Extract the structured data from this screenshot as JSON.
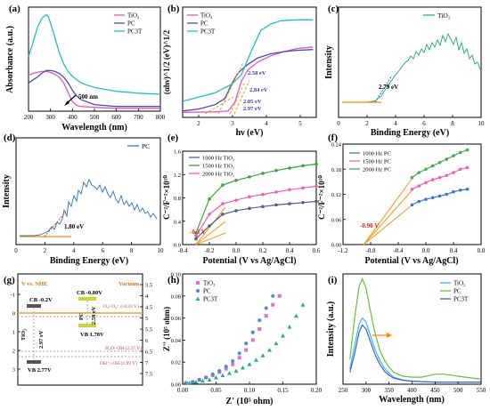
{
  "chart_data": [
    {
      "id": "a",
      "panel_label": "(a)",
      "type": "line",
      "xlabel": "Wavelength (nm)",
      "ylabel": "Absorbance (a.u.)",
      "xlim": [
        200,
        800
      ],
      "ylim": [
        0,
        1.1
      ],
      "xticks": [
        "200",
        "300",
        "400",
        "500",
        "600",
        "700",
        "800"
      ],
      "legend": "top-right",
      "grid": false,
      "annotations": [
        {
          "text": "500 nm",
          "x": 500,
          "y": 0.12
        }
      ],
      "series": [
        {
          "name": "TiO₂",
          "color": "#e05ac8",
          "x": [
            200,
            220,
            240,
            260,
            280,
            300,
            320,
            340,
            360,
            380,
            400,
            420,
            440,
            500,
            600,
            700,
            800
          ],
          "y": [
            0.38,
            0.4,
            0.41,
            0.42,
            0.42,
            0.41,
            0.39,
            0.36,
            0.3,
            0.2,
            0.1,
            0.06,
            0.05,
            0.04,
            0.03,
            0.03,
            0.03
          ]
        },
        {
          "name": "PC",
          "color": "#4a4aaa",
          "x": [
            200,
            220,
            240,
            260,
            280,
            300,
            320,
            340,
            360,
            380,
            400,
            420,
            440,
            500,
            600,
            700,
            800
          ],
          "y": [
            0.3,
            0.33,
            0.36,
            0.4,
            0.43,
            0.43,
            0.42,
            0.4,
            0.36,
            0.3,
            0.22,
            0.16,
            0.12,
            0.07,
            0.05,
            0.05,
            0.05
          ]
        },
        {
          "name": "PC3T",
          "color": "#1fc1c1",
          "x": [
            200,
            220,
            240,
            260,
            280,
            290,
            300,
            320,
            340,
            360,
            380,
            400,
            420,
            440,
            460,
            500,
            600,
            700,
            800
          ],
          "y": [
            0.58,
            0.72,
            0.88,
            0.98,
            1.02,
            1.0,
            0.93,
            0.78,
            0.62,
            0.5,
            0.42,
            0.37,
            0.33,
            0.3,
            0.28,
            0.25,
            0.21,
            0.19,
            0.18
          ]
        }
      ]
    },
    {
      "id": "b",
      "panel_label": "(b)",
      "type": "line",
      "xlabel": "hν (eV)",
      "ylabel": "(αhν)^1/2 (eV)^1/2",
      "xlim": [
        1.5,
        5.6
      ],
      "ylim": [
        0,
        2.6
      ],
      "xticks": [
        "2",
        "3",
        "4",
        "5"
      ],
      "legend": "top-left",
      "grid": false,
      "annotations": [
        "2.58 eV",
        "2.84 eV",
        "2.05 eV",
        "2.97 eV"
      ],
      "series": [
        {
          "name": "TiO₂",
          "color": "#e05ac8",
          "x": [
            1.5,
            2.5,
            2.9,
            3.1,
            3.3,
            3.5,
            3.8,
            4.2,
            4.6,
            5.0,
            5.5
          ],
          "y": [
            0.12,
            0.13,
            0.15,
            0.35,
            0.85,
            1.12,
            1.3,
            1.45,
            1.55,
            1.62,
            1.66
          ]
        },
        {
          "name": "PC",
          "color": "#4a4aaa",
          "x": [
            1.5,
            2.0,
            2.5,
            2.8,
            3.0,
            3.2,
            3.5,
            3.8,
            4.2,
            4.6,
            5.0,
            5.5
          ],
          "y": [
            0.15,
            0.2,
            0.3,
            0.45,
            0.78,
            1.05,
            1.25,
            1.4,
            1.5,
            1.55,
            1.58,
            1.6
          ]
        },
        {
          "name": "PC3T",
          "color": "#1fc1c1",
          "x": [
            1.5,
            2.0,
            2.5,
            3.0,
            3.3,
            3.6,
            3.9,
            4.2,
            4.5,
            5.0,
            5.5
          ],
          "y": [
            0.38,
            0.48,
            0.58,
            0.78,
            1.0,
            1.55,
            2.05,
            2.2,
            2.28,
            2.3,
            2.3
          ]
        }
      ]
    },
    {
      "id": "c",
      "panel_label": "(c)",
      "type": "line",
      "xlabel": "Binding Energy (eV)",
      "ylabel": "Intensity",
      "xlim": [
        0,
        10
      ],
      "xticks": [
        "0",
        "2",
        "4",
        "6",
        "8",
        "10"
      ],
      "legend": "top-right",
      "grid": false,
      "annotations": [
        {
          "text": "2.79 eV"
        }
      ],
      "series": [
        {
          "name": "TiO₂",
          "color": "#1aa57a"
        }
      ]
    },
    {
      "id": "d",
      "panel_label": "(d)",
      "type": "line",
      "xlabel": "Binding Energy (eV)",
      "ylabel": "Intensity",
      "xlim": [
        0,
        10
      ],
      "xticks": [
        "0",
        "2",
        "4",
        "6",
        "8",
        "10"
      ],
      "legend": "top-right",
      "grid": false,
      "annotations": [
        {
          "text": "1.80 eV"
        }
      ],
      "series": [
        {
          "name": "PC",
          "color": "#2b73b5"
        }
      ]
    },
    {
      "id": "e",
      "panel_label": "(e)",
      "type": "line",
      "xlabel": "Potential (V vs Ag/AgCl)",
      "ylabel": "C⁻²/F⁻²×10¹⁰",
      "xlim": [
        -0.4,
        0.6
      ],
      "ylim": [
        0,
        1.6
      ],
      "xticks": [
        "-0.4",
        "-0.2",
        "0.0",
        "0.2",
        "0.4",
        "0.6"
      ],
      "yticks": [
        "0.0",
        "0.4",
        "0.8",
        "1.2",
        "1.6"
      ],
      "legend": "top-left",
      "grid": false,
      "annotations": [
        {
          "text": "-0.3 V",
          "x": -0.3
        }
      ],
      "series": [
        {
          "name": "1000 Hz TiO₂",
          "color": "#4f5f8f",
          "x": [
            -0.3,
            -0.2,
            -0.1,
            0.0,
            0.1,
            0.2,
            0.3,
            0.4,
            0.5,
            0.6
          ],
          "y": [
            0.1,
            0.32,
            0.52,
            0.58,
            0.62,
            0.65,
            0.68,
            0.7,
            0.72,
            0.74
          ]
        },
        {
          "name": "1500 Hz TiO₂",
          "color": "#3aa535",
          "x": [
            -0.3,
            -0.2,
            -0.1,
            0.0,
            0.1,
            0.2,
            0.3,
            0.4,
            0.5,
            0.6
          ],
          "y": [
            0.2,
            0.78,
            1.02,
            1.1,
            1.16,
            1.22,
            1.27,
            1.31,
            1.35,
            1.38
          ]
        },
        {
          "name": "2000 Hz TiO₂",
          "color": "#f05cb8",
          "x": [
            -0.3,
            -0.2,
            -0.1,
            0.0,
            0.1,
            0.2,
            0.3,
            0.4,
            0.5,
            0.6
          ],
          "y": [
            0.15,
            0.52,
            0.7,
            0.76,
            0.82,
            0.86,
            0.9,
            0.94,
            0.97,
            1.0
          ]
        }
      ]
    },
    {
      "id": "f",
      "panel_label": "(f)",
      "type": "line",
      "xlabel": "Potential (V vs Ag/AgCl)",
      "ylabel": "C⁻²/F⁻²×10¹⁰",
      "xlim": [
        -1.2,
        0.8
      ],
      "ylim": [
        0,
        0.24
      ],
      "xticks": [
        "-1.2",
        "-0.8",
        "-0.4",
        "0.0",
        "0.4",
        "0.8"
      ],
      "yticks": [
        "0.00",
        "0.06",
        "0.12",
        "0.18",
        "0.24"
      ],
      "legend": "top-left",
      "grid": false,
      "annotations": [
        {
          "text": "-0.90 V",
          "x": -0.9
        }
      ],
      "series": [
        {
          "name": "1000 Hz PC",
          "color": "#3a78bd",
          "x": [
            -0.2,
            -0.1,
            0.0,
            0.1,
            0.2,
            0.3,
            0.4,
            0.5,
            0.6
          ],
          "y": [
            0.095,
            0.103,
            0.108,
            0.112,
            0.116,
            0.12,
            0.126,
            0.13,
            0.132
          ]
        },
        {
          "name": "1500 Hz PC",
          "color": "#f060b8",
          "x": [
            -0.2,
            -0.1,
            0.0,
            0.1,
            0.2,
            0.3,
            0.4,
            0.5,
            0.6
          ],
          "y": [
            0.132,
            0.14,
            0.148,
            0.155,
            0.16,
            0.165,
            0.172,
            0.18,
            0.184
          ]
        },
        {
          "name": "2000 Hz PC",
          "color": "#4aaa55",
          "x": [
            -0.2,
            -0.1,
            0.0,
            0.1,
            0.2,
            0.3,
            0.4,
            0.5,
            0.6
          ],
          "y": [
            0.16,
            0.172,
            0.18,
            0.188,
            0.196,
            0.204,
            0.212,
            0.22,
            0.226
          ]
        }
      ]
    },
    {
      "id": "g",
      "panel_label": "(g)",
      "type": "diagram",
      "left_axis_label": "V vs. NHE",
      "right_axis_label": "Vacuum",
      "left_ticks": [
        "-1",
        "0",
        "1",
        "2",
        "3"
      ],
      "right_ticks": [
        "3.5",
        "4",
        "4.5",
        "5",
        "5.5",
        "6",
        "6.5",
        "7",
        "7.5"
      ],
      "labels": {
        "tio2_cb": "CB -0.2V",
        "tio2_vb": "VB 2.77V",
        "tio2_name": "TiO₂",
        "tio2_gap": "2.97 eV",
        "pc_cb": "CB -0.80V",
        "pc_vb": "VB 1.78V",
        "pc_name": "PC",
        "pc_gap": "2.58 eV",
        "o2": "O₂/·O₂⁻ (-0.33 V)",
        "h2o": "H₂O/·OH (2.37 V)",
        "oh": "OH⁻/·OH (1.99 V)"
      }
    },
    {
      "id": "h",
      "panel_label": "(h)",
      "type": "scatter",
      "xlabel": "Z' (10⁵ ohm)",
      "ylabel": "Z'' (10⁵ ohm)",
      "xlim": [
        0,
        0.2
      ],
      "ylim": [
        0,
        0.1
      ],
      "xticks": [
        "0.00",
        "0.05",
        "0.10",
        "0.15",
        "0.20"
      ],
      "yticks": [
        "0.00",
        "0.02",
        "0.04",
        "0.06",
        "0.08",
        "0.10"
      ],
      "legend": "top-left",
      "grid": false,
      "series": [
        {
          "name": "TiO₂",
          "color": "#e070d0",
          "marker": "square",
          "x": [
            0.005,
            0.015,
            0.025,
            0.035,
            0.045,
            0.055,
            0.065,
            0.075,
            0.085,
            0.095,
            0.105,
            0.115,
            0.125,
            0.135,
            0.145
          ],
          "y": [
            0.001,
            0.002,
            0.004,
            0.006,
            0.008,
            0.011,
            0.014,
            0.018,
            0.024,
            0.031,
            0.04,
            0.05,
            0.062,
            0.072,
            0.08
          ]
        },
        {
          "name": "PC",
          "color": "#4a90d0",
          "marker": "circle",
          "x": [
            0.005,
            0.015,
            0.025,
            0.035,
            0.045,
            0.055,
            0.065,
            0.075,
            0.085,
            0.095,
            0.105,
            0.115,
            0.125,
            0.135
          ],
          "y": [
            0.001,
            0.002,
            0.004,
            0.006,
            0.009,
            0.012,
            0.016,
            0.021,
            0.028,
            0.037,
            0.047,
            0.058,
            0.069,
            0.08
          ]
        },
        {
          "name": "PC3T",
          "color": "#20b08a",
          "marker": "triangle",
          "x": [
            0.01,
            0.02,
            0.03,
            0.04,
            0.05,
            0.06,
            0.07,
            0.08,
            0.09,
            0.1,
            0.11,
            0.12,
            0.13,
            0.14,
            0.15,
            0.16,
            0.17,
            0.18
          ],
          "y": [
            0.001,
            0.002,
            0.003,
            0.004,
            0.006,
            0.008,
            0.01,
            0.012,
            0.015,
            0.018,
            0.022,
            0.026,
            0.031,
            0.037,
            0.044,
            0.052,
            0.062,
            0.072
          ]
        }
      ]
    },
    {
      "id": "i",
      "panel_label": "(i)",
      "type": "line",
      "xlabel": "Wavelength (nm)",
      "ylabel": "Intensity (a.u.)",
      "xlim": [
        250,
        550
      ],
      "ylim": [
        0,
        1.1
      ],
      "xticks": [
        "250",
        "300",
        "350",
        "400",
        "450",
        "500",
        "550"
      ],
      "legend": "top-right",
      "grid": false,
      "series": [
        {
          "name": "TiO₂",
          "color": "#2fb7ff",
          "x": [
            265,
            275,
            285,
            292,
            300,
            310,
            320,
            330,
            340,
            350,
            360,
            380,
            400,
            450,
            500,
            550
          ],
          "y": [
            0.15,
            0.38,
            0.6,
            0.66,
            0.62,
            0.48,
            0.34,
            0.24,
            0.16,
            0.11,
            0.07,
            0.04,
            0.03,
            0.02,
            0.02,
            0.02
          ]
        },
        {
          "name": "PC",
          "color": "#68c038",
          "x": [
            265,
            275,
            285,
            292,
            300,
            310,
            320,
            330,
            340,
            350,
            360,
            380,
            400,
            420,
            440,
            450,
            470,
            500,
            550
          ],
          "y": [
            0.25,
            0.65,
            0.98,
            1.05,
            0.96,
            0.72,
            0.5,
            0.34,
            0.24,
            0.17,
            0.12,
            0.08,
            0.07,
            0.07,
            0.09,
            0.1,
            0.1,
            0.08,
            0.05
          ]
        },
        {
          "name": "PC3T",
          "color": "#3366d0",
          "x": [
            265,
            275,
            285,
            292,
            300,
            310,
            320,
            330,
            340,
            350,
            360,
            380,
            400,
            450,
            500,
            550
          ],
          "y": [
            0.12,
            0.3,
            0.52,
            0.59,
            0.55,
            0.42,
            0.29,
            0.2,
            0.13,
            0.09,
            0.06,
            0.04,
            0.03,
            0.02,
            0.02,
            0.02
          ]
        }
      ]
    }
  ]
}
